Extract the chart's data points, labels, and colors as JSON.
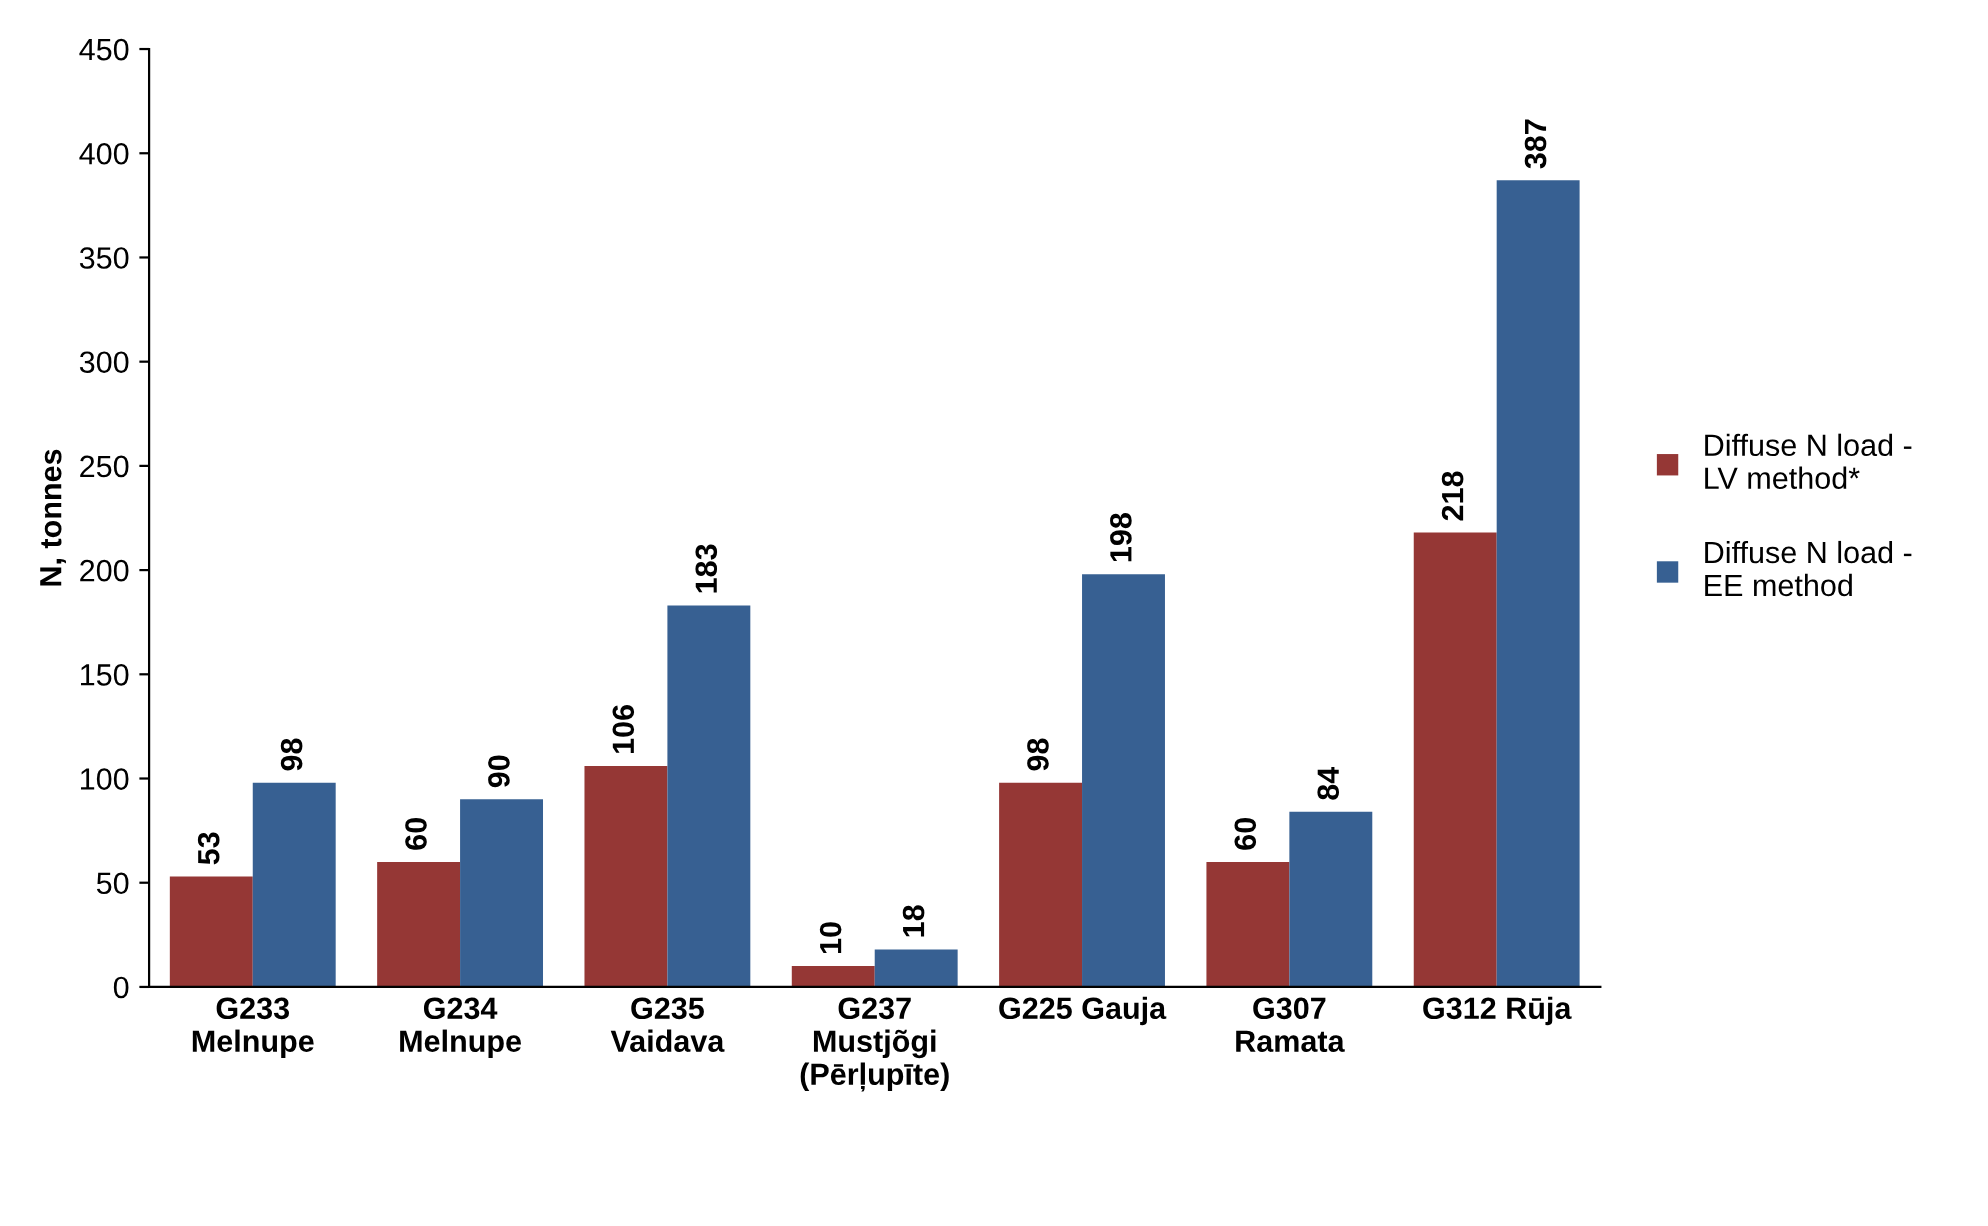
{
  "chart_data": {
    "type": "bar",
    "ylabel": "N, tonnes",
    "categories": [
      "G233\nMelnupe",
      "G234\nMelnupe",
      "G235\nVaidava",
      "G237\nMustjõgi\n(Pērļupīte)",
      "G225 Gauja",
      "G307\nRamata",
      "G312 Rūja"
    ],
    "series": [
      {
        "name": "Diffuse N load -\nLV method*",
        "color": "#953735",
        "values": [
          53,
          60,
          106,
          10,
          98,
          60,
          218
        ]
      },
      {
        "name": "Diffuse N load -\nEE method",
        "color": "#376092",
        "values": [
          98,
          90,
          183,
          18,
          198,
          84,
          387
        ]
      }
    ],
    "ylim": [
      0,
      450
    ],
    "yticks": [
      0,
      50,
      100,
      150,
      200,
      250,
      300,
      350,
      400,
      450
    ],
    "data_labels": true,
    "grid": false,
    "legend": "right"
  }
}
